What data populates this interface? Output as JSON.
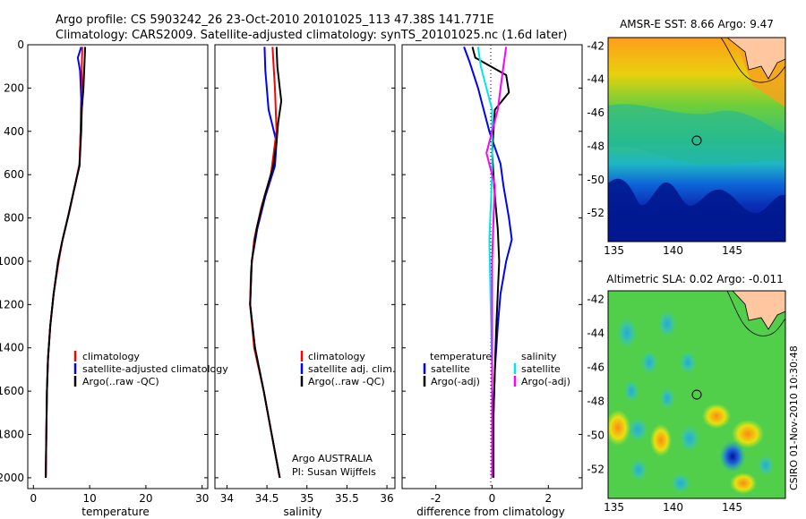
{
  "header": {
    "title_line1": "Argo profile: CS 5903242_26 23-Oct-2010 20101025_113 47.38S 141.771E",
    "title_line2": "Climatology: CARS2009. Satellite-adjusted climatology: synTS_20101025.nc (1.6d later)"
  },
  "colors": {
    "climatology": "#ff0000",
    "satellite": "#0000ff",
    "argo": "#000000",
    "sat_salinity": "#00e5ee",
    "argo_salinity": "#ff00ff"
  },
  "chart_data": [
    {
      "type": "line",
      "name": "temperature-profile",
      "xlabel": "temperature",
      "ylabel": "",
      "xlim": [
        -1,
        31
      ],
      "ylim": [
        2050,
        0
      ],
      "xticks": [
        "0",
        "10",
        "20",
        "30"
      ],
      "yticks": [
        "0",
        "200",
        "400",
        "600",
        "800",
        "1000",
        "1200",
        "1400",
        "1600",
        "1800",
        "2000"
      ],
      "legend": [
        "climatology",
        "satellite-adjusted climatology",
        "Argo(..raw -QC)"
      ],
      "series": [
        {
          "name": "satellite-adjusted climatology",
          "color": "#0000ff",
          "points": [
            [
              8.5,
              10
            ],
            [
              7.9,
              60
            ],
            [
              8.3,
              120
            ],
            [
              8.5,
              250
            ],
            [
              8.4,
              400
            ],
            [
              8.2,
              550
            ],
            [
              7.4,
              650
            ],
            [
              6.3,
              780
            ],
            [
              5.2,
              900
            ],
            [
              4.4,
              1000
            ],
            [
              3.6,
              1150
            ],
            [
              3.0,
              1300
            ],
            [
              2.6,
              1450
            ],
            [
              2.4,
              1600
            ],
            [
              2.3,
              1800
            ],
            [
              2.2,
              2000
            ]
          ]
        },
        {
          "name": "climatology",
          "color": "#ff0000",
          "points": [
            [
              8.7,
              10
            ],
            [
              8.6,
              100
            ],
            [
              8.7,
              250
            ],
            [
              8.4,
              400
            ],
            [
              8.2,
              550
            ],
            [
              7.4,
              650
            ],
            [
              6.3,
              780
            ],
            [
              5.2,
              900
            ],
            [
              4.5,
              1000
            ],
            [
              3.6,
              1150
            ],
            [
              3.0,
              1300
            ],
            [
              2.6,
              1450
            ],
            [
              2.4,
              1600
            ],
            [
              2.3,
              1800
            ],
            [
              2.2,
              2000
            ]
          ]
        },
        {
          "name": "Argo(..raw -QC)",
          "color": "#000000",
          "points": [
            [
              9.2,
              10
            ],
            [
              8.9,
              200
            ],
            [
              8.6,
              300
            ],
            [
              8.5,
              400
            ],
            [
              8.2,
              560
            ],
            [
              7.3,
              660
            ],
            [
              6.2,
              790
            ],
            [
              5.1,
              910
            ],
            [
              4.4,
              1000
            ],
            [
              3.6,
              1150
            ],
            [
              3.0,
              1300
            ],
            [
              2.6,
              1450
            ],
            [
              2.4,
              1600
            ],
            [
              2.3,
              1800
            ],
            [
              2.2,
              2000
            ]
          ]
        }
      ]
    },
    {
      "type": "line",
      "name": "salinity-profile",
      "xlabel": "salinity",
      "ylabel": "",
      "xlim": [
        33.85,
        36.1
      ],
      "ylim": [
        2050,
        0
      ],
      "xticks": [
        "34",
        "34.5",
        "35",
        "35.5",
        "36"
      ],
      "legend": [
        "climatology",
        "satellite adj. clim.",
        "Argo(..raw -QC)"
      ],
      "annotation": [
        "Argo AUSTRALIA",
        "PI: Susan Wijffels"
      ],
      "series": [
        {
          "name": "satellite adj. clim.",
          "color": "#0000ff",
          "points": [
            [
              34.47,
              10
            ],
            [
              34.48,
              120
            ],
            [
              34.52,
              300
            ],
            [
              34.62,
              450
            ],
            [
              34.6,
              560
            ],
            [
              34.48,
              700
            ],
            [
              34.38,
              850
            ],
            [
              34.31,
              1000
            ],
            [
              34.29,
              1200
            ],
            [
              34.35,
              1400
            ],
            [
              34.46,
              1600
            ],
            [
              34.56,
              1800
            ],
            [
              34.66,
              2000
            ]
          ]
        },
        {
          "name": "climatology",
          "color": "#ff0000",
          "points": [
            [
              34.57,
              10
            ],
            [
              34.6,
              200
            ],
            [
              34.62,
              400
            ],
            [
              34.55,
              600
            ],
            [
              34.43,
              750
            ],
            [
              34.34,
              900
            ],
            [
              34.3,
              1050
            ],
            [
              34.29,
              1200
            ],
            [
              34.34,
              1400
            ],
            [
              34.46,
              1600
            ],
            [
              34.56,
              1800
            ],
            [
              34.66,
              2000
            ]
          ]
        },
        {
          "name": "Argo(..raw -QC)",
          "color": "#000000",
          "points": [
            [
              34.62,
              10
            ],
            [
              34.63,
              100
            ],
            [
              34.66,
              200
            ],
            [
              34.68,
              260
            ],
            [
              34.64,
              360
            ],
            [
              34.62,
              450
            ],
            [
              34.58,
              560
            ],
            [
              34.47,
              700
            ],
            [
              34.37,
              850
            ],
            [
              34.31,
              1000
            ],
            [
              34.29,
              1200
            ],
            [
              34.35,
              1400
            ],
            [
              34.46,
              1600
            ],
            [
              34.56,
              1800
            ],
            [
              34.66,
              2000
            ]
          ]
        }
      ]
    },
    {
      "type": "line",
      "name": "difference-profile",
      "xlabel": "difference from climatology",
      "ylabel": "",
      "xlim": [
        -3.2,
        3.2
      ],
      "ylim": [
        2050,
        0
      ],
      "xticks": [
        "-2",
        "0",
        "2"
      ],
      "legend_headers": [
        "temperature",
        "salinity"
      ],
      "legend": [
        "satellite",
        "Argo(-adj)",
        "satellite",
        "Argo(-adj)"
      ],
      "series": [
        {
          "name": "temperature satellite",
          "color": "#0000ff",
          "points": [
            [
              -1.0,
              10
            ],
            [
              -0.8,
              80
            ],
            [
              -0.5,
              200
            ],
            [
              -0.3,
              300
            ],
            [
              -0.1,
              400
            ],
            [
              0.3,
              550
            ],
            [
              0.4,
              650
            ],
            [
              0.6,
              800
            ],
            [
              0.7,
              900
            ],
            [
              0.5,
              1000
            ],
            [
              0.3,
              1150
            ],
            [
              0.2,
              1300
            ],
            [
              0.1,
              1500
            ],
            [
              0.05,
              1700
            ],
            [
              0.02,
              2000
            ]
          ]
        },
        {
          "name": "temperature Argo(-adj)",
          "color": "#000000",
          "points": [
            [
              -0.7,
              10
            ],
            [
              -0.6,
              60
            ],
            [
              0.5,
              140
            ],
            [
              0.6,
              220
            ],
            [
              0.1,
              300
            ],
            [
              0.0,
              500
            ],
            [
              0.1,
              700
            ],
            [
              0.2,
              850
            ],
            [
              0.25,
              1000
            ],
            [
              0.2,
              1150
            ],
            [
              0.15,
              1300
            ],
            [
              0.1,
              1500
            ],
            [
              0.05,
              1700
            ],
            [
              0.05,
              2000
            ]
          ]
        },
        {
          "name": "salinity satellite",
          "color": "#00e5ee",
          "points": [
            [
              -0.5,
              10
            ],
            [
              -0.4,
              100
            ],
            [
              0.0,
              300
            ],
            [
              0.0,
              600
            ],
            [
              -0.1,
              900
            ],
            [
              -0.05,
              1200
            ],
            [
              0.0,
              1500
            ],
            [
              0.0,
              2000
            ]
          ]
        },
        {
          "name": "salinity Argo(-adj)",
          "color": "#ff00ff",
          "points": [
            [
              0.5,
              10
            ],
            [
              0.4,
              100
            ],
            [
              0.2,
              300
            ],
            [
              -0.2,
              500
            ],
            [
              0.1,
              650
            ],
            [
              0.05,
              800
            ],
            [
              0.0,
              1000
            ],
            [
              0.0,
              1400
            ],
            [
              0.0,
              2000
            ]
          ]
        }
      ]
    },
    {
      "type": "heatmap",
      "name": "sst-map",
      "title": "AMSR-E SST: 8.66  Argo: 9.47",
      "xlim": [
        134.5,
        149.5
      ],
      "ylim": [
        -53.7,
        -41.5
      ],
      "xticks": [
        "135",
        "140",
        "145"
      ],
      "yticks": [
        "-42",
        "-44",
        "-46",
        "-48",
        "-50",
        "-52"
      ],
      "argo_location": [
        141.77,
        -47.38
      ]
    },
    {
      "type": "heatmap",
      "name": "sla-map",
      "title": "Altimetric SLA: 0.02  Argo: -0.011",
      "xlim": [
        134.5,
        149.5
      ],
      "ylim": [
        -53.7,
        -41.5
      ],
      "xticks": [
        "135",
        "140",
        "145"
      ],
      "yticks": [
        "-42",
        "-44",
        "-46",
        "-48",
        "-50",
        "-52"
      ],
      "argo_location": [
        141.77,
        -47.38
      ]
    }
  ],
  "footer": {
    "side_stamp": "CSIRO 01-Nov-2010 10:30:48"
  }
}
